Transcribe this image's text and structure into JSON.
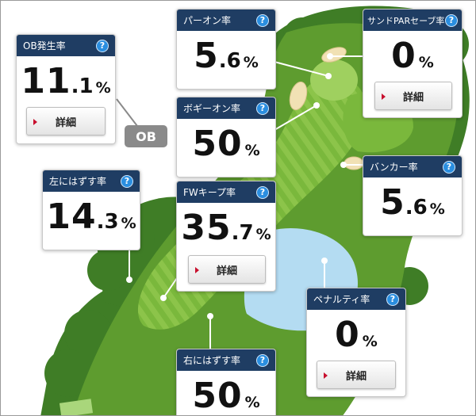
{
  "ob_tag": "OB",
  "detail_label": "詳細",
  "help_glyph": "?",
  "icons": {
    "help": "question-circle-icon",
    "arrow": "triangle-right-icon"
  },
  "colors": {
    "header": "#1f3d63",
    "help": "#2a8ee0",
    "arrow": "#c8102e",
    "fairway": "#6aab2f",
    "rough": "#4f8e2a",
    "water": "#b4dcf2",
    "bunker": "#f1e1b4"
  },
  "stats": {
    "ob": {
      "label": "OB発生率",
      "int": "11",
      "dec": ".1",
      "unit": "%"
    },
    "paron": {
      "label": "パーオン率",
      "int": "5",
      "dec": ".6",
      "unit": "%"
    },
    "sandpar": {
      "label": "サンドPARセーブ率",
      "int": "0",
      "dec": "",
      "unit": "%"
    },
    "bogey": {
      "label": "ボギーオン率",
      "int": "50",
      "dec": "",
      "unit": "%"
    },
    "left": {
      "label": "左にはずす率",
      "int": "14",
      "dec": ".3",
      "unit": "%"
    },
    "bunker": {
      "label": "バンカー率",
      "int": "5",
      "dec": ".6",
      "unit": "%"
    },
    "fw": {
      "label": "FWキープ率",
      "int": "35",
      "dec": ".7",
      "unit": "%"
    },
    "penalty": {
      "label": "ペナルティ率",
      "int": "0",
      "dec": "",
      "unit": "%"
    },
    "right": {
      "label": "右にはずす率",
      "int": "50",
      "dec": "",
      "unit": "%"
    }
  }
}
